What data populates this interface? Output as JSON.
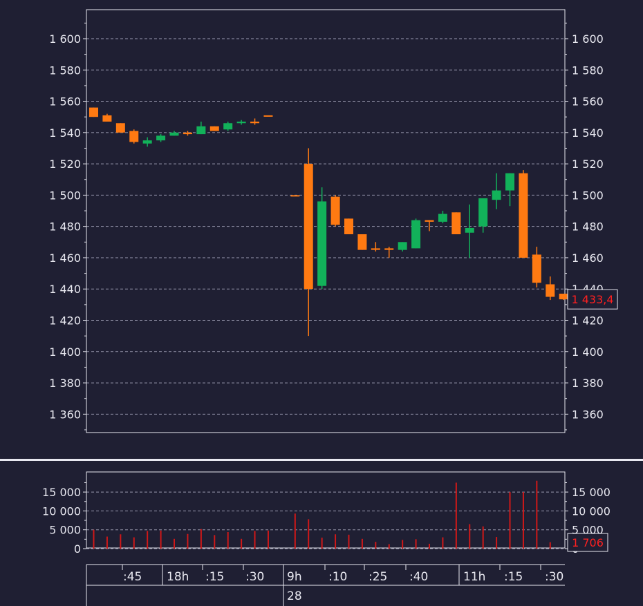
{
  "colors": {
    "background": "#1f1f33",
    "frame": "#e8e8f0",
    "grid": "#9a9ab0",
    "up": "#12b15a",
    "down": "#ff7a12",
    "volume": "#d01818",
    "last_label": "#ff2020"
  },
  "chart_data": [
    {
      "type": "candlestick",
      "ylim": [
        1347,
        1617
      ],
      "y_ticks": [
        1360,
        1380,
        1400,
        1420,
        1440,
        1460,
        1480,
        1500,
        1520,
        1540,
        1560,
        1580,
        1600
      ],
      "y_tick_labels": [
        "1 360",
        "1 380",
        "1 400",
        "1 420",
        "1 440",
        "1 460",
        "1 480",
        "1 500",
        "1 520",
        "1 540",
        "1 560",
        "1 580",
        "1 600"
      ],
      "grid": true,
      "last_value": 1433.4,
      "last_label": "1 433,4",
      "candles": [
        {
          "slot": 0,
          "o": 1556,
          "h": 1556,
          "l": 1550,
          "c": 1550
        },
        {
          "slot": 1,
          "o": 1551,
          "h": 1552,
          "l": 1547,
          "c": 1547
        },
        {
          "slot": 2,
          "o": 1546,
          "h": 1546,
          "l": 1540,
          "c": 1540
        },
        {
          "slot": 3,
          "o": 1541,
          "h": 1542,
          "l": 1533,
          "c": 1534
        },
        {
          "slot": 4,
          "o": 1533,
          "h": 1537,
          "l": 1531,
          "c": 1535
        },
        {
          "slot": 5,
          "o": 1535,
          "h": 1539,
          "l": 1534,
          "c": 1538
        },
        {
          "slot": 6,
          "o": 1538,
          "h": 1541,
          "l": 1538,
          "c": 1540
        },
        {
          "slot": 7,
          "o": 1540,
          "h": 1541,
          "l": 1538,
          "c": 1539
        },
        {
          "slot": 8,
          "o": 1539,
          "h": 1547,
          "l": 1539,
          "c": 1544
        },
        {
          "slot": 9,
          "o": 1544,
          "h": 1544,
          "l": 1541,
          "c": 1541
        },
        {
          "slot": 10,
          "o": 1542,
          "h": 1547,
          "l": 1541,
          "c": 1546
        },
        {
          "slot": 11,
          "o": 1546,
          "h": 1548,
          "l": 1545,
          "c": 1547
        },
        {
          "slot": 12,
          "o": 1547,
          "h": 1549,
          "l": 1545,
          "c": 1546
        },
        {
          "slot": 13,
          "o": 1551,
          "h": 1551,
          "l": 1551,
          "c": 1551
        },
        {
          "slot": 15,
          "o": 1500,
          "h": 1500,
          "l": 1500,
          "c": 1500
        },
        {
          "slot": 16,
          "o": 1520,
          "h": 1530,
          "l": 1410,
          "c": 1440
        },
        {
          "slot": 17,
          "o": 1442,
          "h": 1505,
          "l": 1440,
          "c": 1496
        },
        {
          "slot": 18,
          "o": 1499,
          "h": 1500,
          "l": 1480,
          "c": 1481
        },
        {
          "slot": 19,
          "o": 1485,
          "h": 1485,
          "l": 1475,
          "c": 1475
        },
        {
          "slot": 20,
          "o": 1475,
          "h": 1475,
          "l": 1465,
          "c": 1465
        },
        {
          "slot": 21,
          "o": 1466,
          "h": 1470,
          "l": 1464,
          "c": 1465
        },
        {
          "slot": 22,
          "o": 1466,
          "h": 1467,
          "l": 1460,
          "c": 1465
        },
        {
          "slot": 23,
          "o": 1465,
          "h": 1470,
          "l": 1464,
          "c": 1470
        },
        {
          "slot": 24,
          "o": 1466,
          "h": 1485,
          "l": 1466,
          "c": 1484
        },
        {
          "slot": 25,
          "o": 1484,
          "h": 1484,
          "l": 1477,
          "c": 1483
        },
        {
          "slot": 26,
          "o": 1483,
          "h": 1490,
          "l": 1482,
          "c": 1488
        },
        {
          "slot": 27,
          "o": 1489,
          "h": 1489,
          "l": 1475,
          "c": 1475
        },
        {
          "slot": 28,
          "o": 1476,
          "h": 1494,
          "l": 1460,
          "c": 1479
        },
        {
          "slot": 29,
          "o": 1480,
          "h": 1498,
          "l": 1476,
          "c": 1498
        },
        {
          "slot": 30,
          "o": 1497,
          "h": 1514,
          "l": 1491,
          "c": 1503
        },
        {
          "slot": 31,
          "o": 1503,
          "h": 1514,
          "l": 1493,
          "c": 1514
        },
        {
          "slot": 32,
          "o": 1514,
          "h": 1516,
          "l": 1460,
          "c": 1460
        },
        {
          "slot": 33,
          "o": 1462,
          "h": 1467,
          "l": 1441,
          "c": 1444
        },
        {
          "slot": 34,
          "o": 1443,
          "h": 1448,
          "l": 1433,
          "c": 1435
        },
        {
          "slot": 35,
          "o": 1437,
          "h": 1437,
          "l": 1433,
          "c": 1433.4
        }
      ]
    },
    {
      "type": "bar",
      "ylim": [
        -2000,
        20000
      ],
      "y_ticks": [
        0,
        5000,
        10000,
        15000
      ],
      "y_tick_labels": [
        "0",
        "5 000",
        "10 000",
        "15 000"
      ],
      "grid": true,
      "last_value": 1706,
      "last_label": "1 706",
      "bars": [
        {
          "slot": 0,
          "v": 5000
        },
        {
          "slot": 1,
          "v": 3200
        },
        {
          "slot": 2,
          "v": 3800
        },
        {
          "slot": 3,
          "v": 3000
        },
        {
          "slot": 4,
          "v": 4700
        },
        {
          "slot": 5,
          "v": 4800
        },
        {
          "slot": 6,
          "v": 2600
        },
        {
          "slot": 7,
          "v": 3900
        },
        {
          "slot": 8,
          "v": 5200
        },
        {
          "slot": 9,
          "v": 3600
        },
        {
          "slot": 10,
          "v": 4400
        },
        {
          "slot": 11,
          "v": 2600
        },
        {
          "slot": 12,
          "v": 4700
        },
        {
          "slot": 13,
          "v": 4800
        },
        {
          "slot": 15,
          "v": 9300
        },
        {
          "slot": 16,
          "v": 7800
        },
        {
          "slot": 17,
          "v": 2900
        },
        {
          "slot": 18,
          "v": 3800
        },
        {
          "slot": 19,
          "v": 3700
        },
        {
          "slot": 20,
          "v": 2600
        },
        {
          "slot": 21,
          "v": 1800
        },
        {
          "slot": 22,
          "v": 1200
        },
        {
          "slot": 23,
          "v": 2300
        },
        {
          "slot": 24,
          "v": 2500
        },
        {
          "slot": 25,
          "v": 1300
        },
        {
          "slot": 26,
          "v": 3000
        },
        {
          "slot": 27,
          "v": 17500
        },
        {
          "slot": 28,
          "v": 6500
        },
        {
          "slot": 29,
          "v": 5900
        },
        {
          "slot": 30,
          "v": 3100
        },
        {
          "slot": 31,
          "v": 15000
        },
        {
          "slot": 32,
          "v": 15000
        },
        {
          "slot": 33,
          "v": 18000
        },
        {
          "slot": 34,
          "v": 1706
        }
      ]
    }
  ],
  "time_axis": {
    "time_labels": [
      ":45",
      "18h",
      ":15",
      ":30",
      "9h",
      ":10",
      ":25",
      ":40",
      "",
      "11h",
      ":15",
      ":30"
    ],
    "date_label": "28"
  }
}
